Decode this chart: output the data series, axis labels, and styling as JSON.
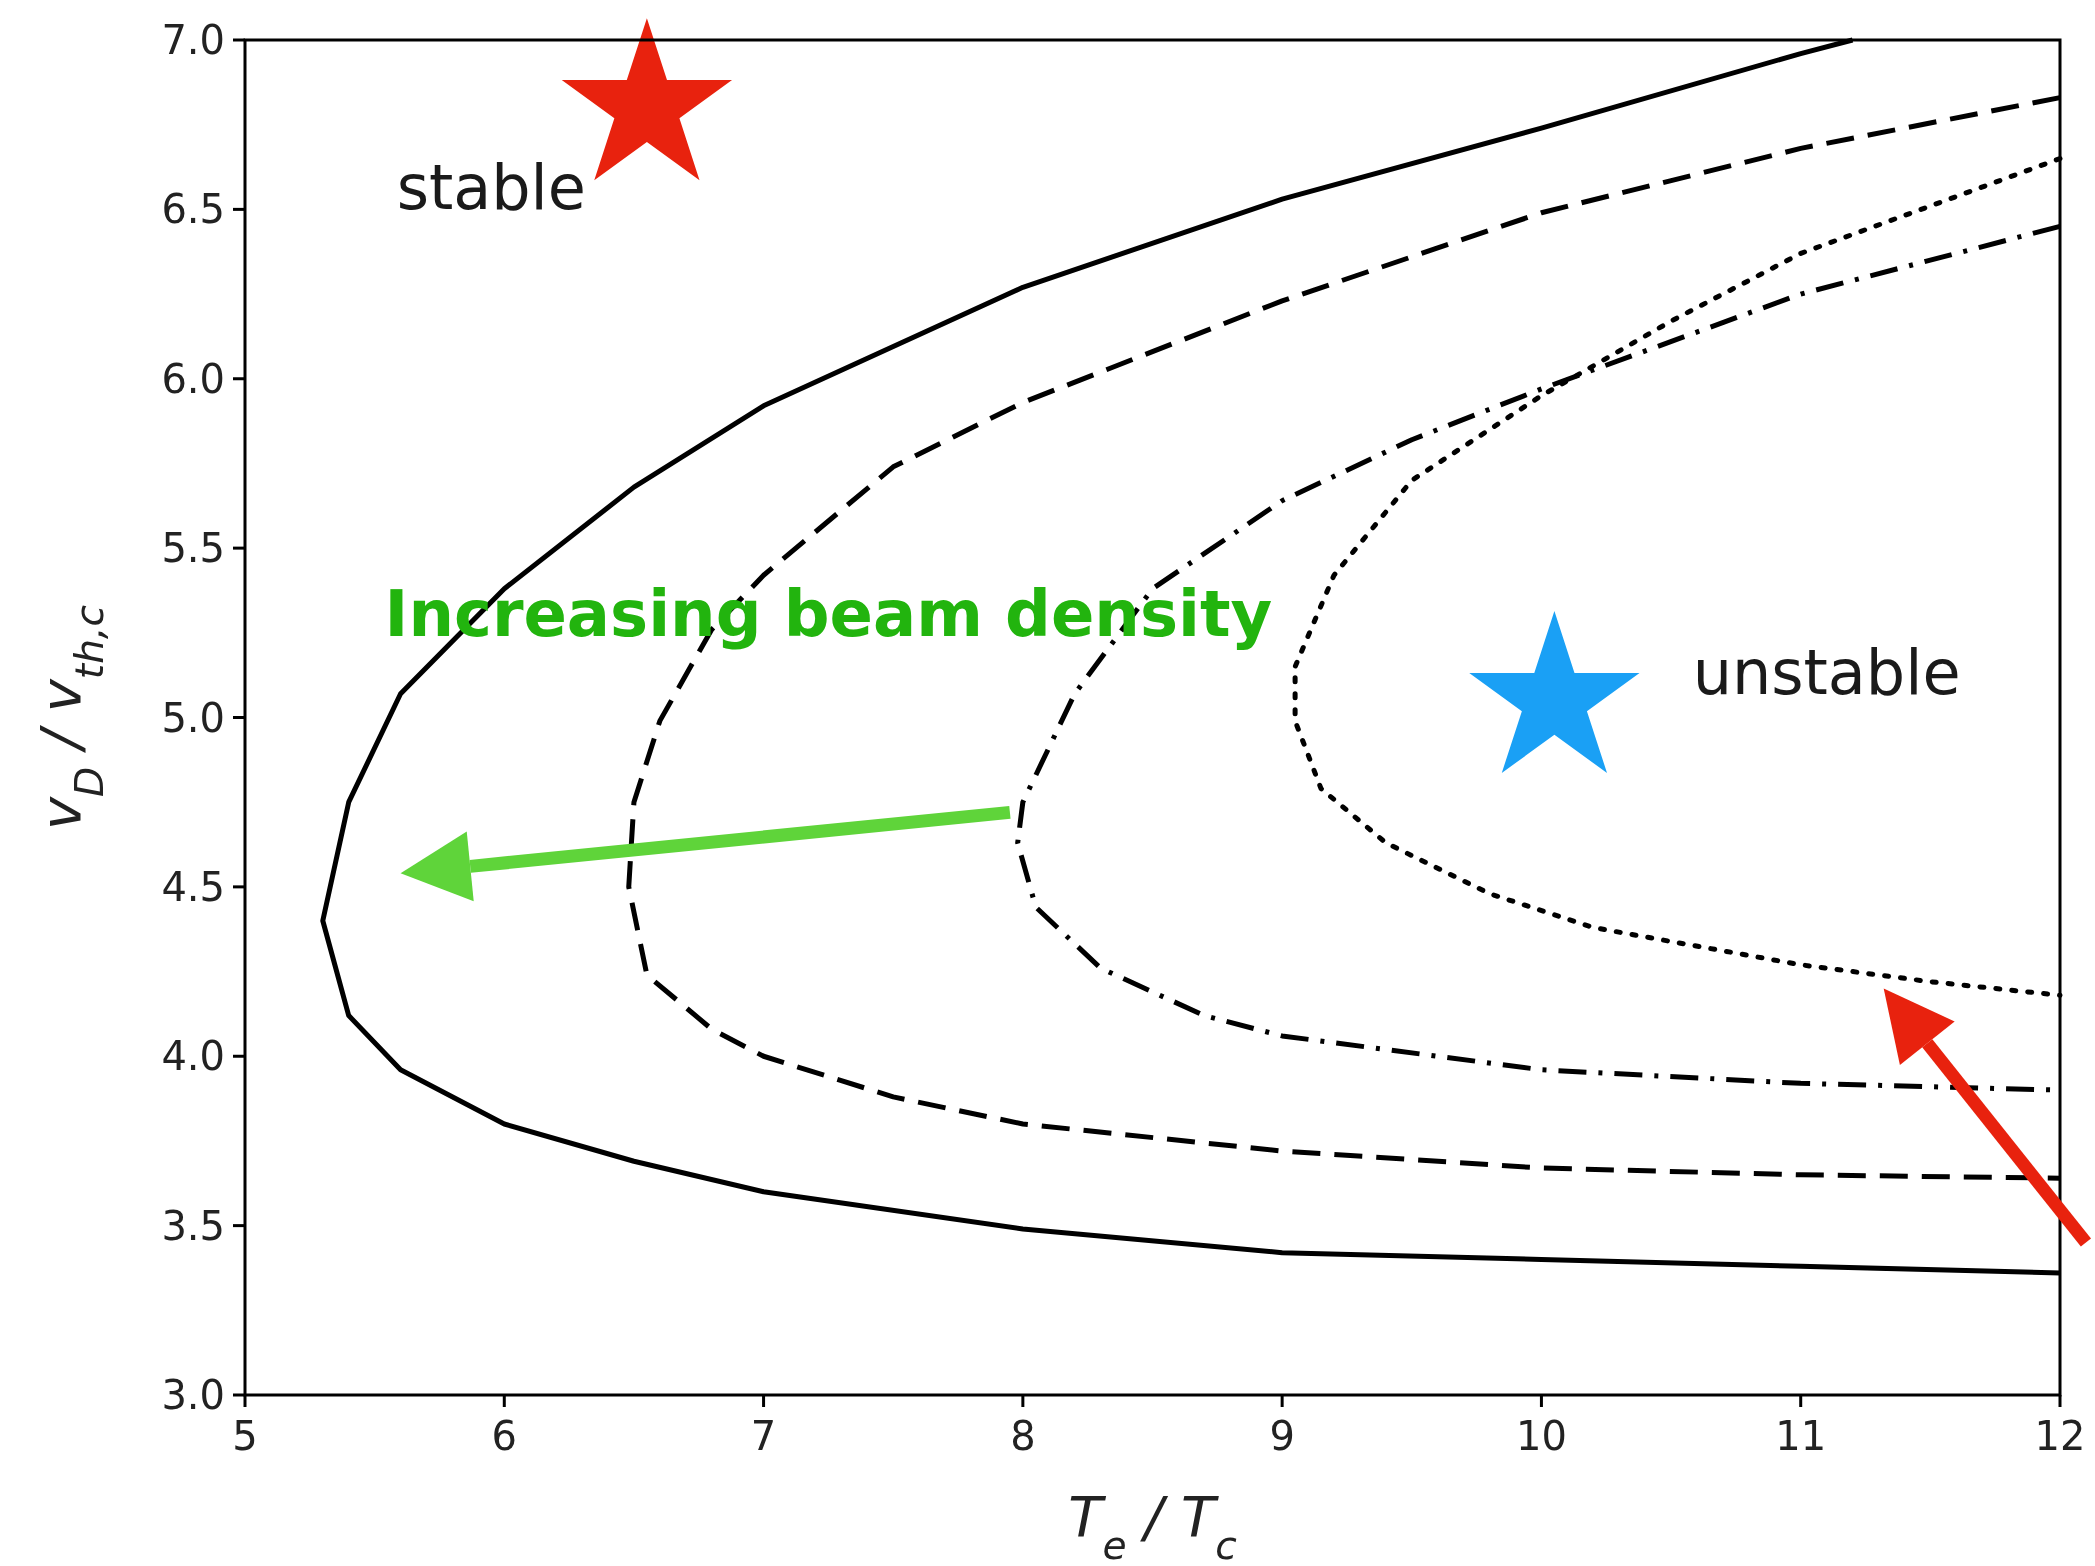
{
  "chart_data": {
    "type": "line",
    "xlabel": "T$_{e}$ / T$_{c}$",
    "ylabel": "v$_{D}$ / v$_{th,c}$",
    "xlim": [
      5,
      12
    ],
    "ylim": [
      3,
      7
    ],
    "xticks": [
      5,
      6,
      7,
      8,
      9,
      10,
      11,
      12
    ],
    "yticks": [
      {
        "value": 3,
        "label": "3.0"
      },
      3.5,
      {
        "value": 4,
        "label": "4.0"
      },
      4.5,
      {
        "value": 5,
        "label": "5.0"
      },
      5.5,
      {
        "value": 6,
        "label": "6.0"
      },
      6.5,
      {
        "value": 7,
        "label": "7.0"
      }
    ],
    "grid": false,
    "annotations": [
      "stable",
      "unstable",
      "Increasing beam density"
    ],
    "series": [
      {
        "color": "#000000",
        "line_style": "solid",
        "x": [
          11.2,
          11,
          10,
          9,
          8,
          7,
          6.5,
          6,
          5.6,
          5.4,
          5.3,
          5.4,
          5.6,
          6,
          6.5,
          7,
          8,
          9,
          10,
          11,
          12
        ],
        "values": [
          7.0,
          6.96,
          6.74,
          6.53,
          6.27,
          5.92,
          5.68,
          5.38,
          5.07,
          4.75,
          4.4,
          4.12,
          3.96,
          3.8,
          3.69,
          3.6,
          3.49,
          3.42,
          3.4,
          3.38,
          3.36
        ]
      },
      {
        "color": "#000000",
        "line_style": "dashed",
        "x": [
          12,
          11,
          10,
          9,
          8,
          7.5,
          7,
          6.8,
          6.6,
          6.5,
          6.48,
          6.55,
          6.8,
          7,
          7.5,
          8,
          9,
          10,
          11,
          12
        ],
        "values": [
          6.83,
          6.68,
          6.49,
          6.23,
          5.93,
          5.74,
          5.42,
          5.26,
          4.99,
          4.75,
          4.5,
          4.24,
          4.08,
          4.0,
          3.88,
          3.8,
          3.72,
          3.67,
          3.65,
          3.64
        ]
      },
      {
        "color": "#000000",
        "line_style": "dashdot",
        "x": [
          12,
          11,
          10,
          9.5,
          9,
          8.5,
          8.2,
          8.0,
          7.98,
          8.05,
          8.3,
          8.7,
          9,
          10,
          11,
          12
        ],
        "values": [
          6.45,
          6.25,
          5.97,
          5.82,
          5.64,
          5.38,
          5.07,
          4.75,
          4.63,
          4.44,
          4.26,
          4.12,
          4.06,
          3.96,
          3.92,
          3.9
        ]
      },
      {
        "color": "#000000",
        "line_style": "dotted",
        "x": [
          12,
          11,
          10.5,
          10,
          9.5,
          9.2,
          9.05,
          9.05,
          9.15,
          9.4,
          9.8,
          10.2,
          11,
          11.5,
          12
        ],
        "values": [
          6.65,
          6.37,
          6.17,
          5.95,
          5.7,
          5.42,
          5.15,
          4.99,
          4.79,
          4.63,
          4.48,
          4.38,
          4.27,
          4.22,
          4.18
        ]
      },
      {
        "type": "scatter",
        "color": "#e8220e",
        "marker": "star",
        "x": [
          6.55
        ],
        "values": [
          6.8
        ]
      },
      {
        "type": "scatter",
        "color": "#1aa0f5",
        "marker": "star",
        "x": [
          10.05
        ],
        "values": [
          5.05
        ]
      }
    ]
  }
}
